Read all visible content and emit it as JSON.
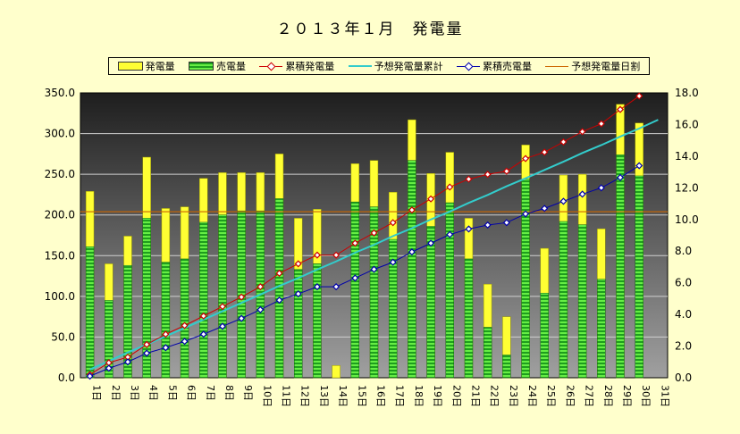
{
  "chart_data": {
    "type": "bar",
    "title": "２０１３年１月　発電量",
    "categories": [
      "1日",
      "2日",
      "3日",
      "4日",
      "5日",
      "6日",
      "7日",
      "8日",
      "9日",
      "10日",
      "11日",
      "12日",
      "13日",
      "14日",
      "15日",
      "16日",
      "17日",
      "18日",
      "19日",
      "20日",
      "21日",
      "22日",
      "23日",
      "24日",
      "25日",
      "26日",
      "27日",
      "28日",
      "29日",
      "30日",
      "31日"
    ],
    "series": [
      {
        "name": "発電量",
        "axis": "left",
        "kind": "bar",
        "color": "#ffff33",
        "values": [
          229,
          140,
          174,
          271,
          208,
          210,
          245,
          252,
          252,
          252,
          275,
          196,
          207,
          15,
          263,
          267,
          228,
          317,
          251,
          277,
          196,
          115,
          75,
          286,
          159,
          249,
          250,
          183,
          336,
          313,
          null
        ]
      },
      {
        "name": "売電量",
        "axis": "left",
        "kind": "bar",
        "color": "#33cc33",
        "values": [
          161,
          95,
          138,
          196,
          142,
          146,
          191,
          200,
          205,
          205,
          220,
          133,
          140,
          0,
          216,
          210,
          170,
          267,
          186,
          215,
          146,
          62,
          28,
          244,
          104,
          192,
          188,
          121,
          274,
          248,
          null
        ]
      },
      {
        "name": "累積発電量",
        "axis": "right",
        "kind": "line",
        "color": "#cc0000",
        "values": [
          0.2,
          0.95,
          1.3,
          2.1,
          2.75,
          3.3,
          3.9,
          4.5,
          5.1,
          5.75,
          6.6,
          7.2,
          7.75,
          7.75,
          8.5,
          9.15,
          9.8,
          10.6,
          11.3,
          12.05,
          12.55,
          12.85,
          13.05,
          13.85,
          14.25,
          14.9,
          15.55,
          16.05,
          16.95,
          17.8,
          null
        ]
      },
      {
        "name": "予想発電量累計",
        "axis": "right",
        "kind": "line",
        "color": "#33cccc",
        "values": [
          0.52,
          1.05,
          1.6,
          2.1,
          2.62,
          3.15,
          3.68,
          4.2,
          4.73,
          5.26,
          5.8,
          6.3,
          6.84,
          7.35,
          7.9,
          8.4,
          8.95,
          9.45,
          10.0,
          10.5,
          11.05,
          11.55,
          12.1,
          12.6,
          13.13,
          13.65,
          14.2,
          14.7,
          15.24,
          15.75,
          16.3
        ]
      },
      {
        "name": "累積売電量",
        "axis": "right",
        "kind": "line",
        "color": "#0000aa",
        "values": [
          0.1,
          0.6,
          1.0,
          1.55,
          1.9,
          2.3,
          2.75,
          3.25,
          3.75,
          4.3,
          4.9,
          5.3,
          5.75,
          5.75,
          6.3,
          6.85,
          7.3,
          7.95,
          8.5,
          9.05,
          9.4,
          9.65,
          9.8,
          10.35,
          10.7,
          11.15,
          11.6,
          12.0,
          12.65,
          13.4,
          null
        ]
      },
      {
        "name": "予想発電量日割",
        "axis": "left",
        "kind": "hline",
        "color": "#cc6600",
        "value": 204
      }
    ],
    "y_left": {
      "min": 0,
      "max": 350,
      "step": 50,
      "tick_labels": [
        "0.0",
        "50.0",
        "100.0",
        "150.0",
        "200.0",
        "250.0",
        "300.0",
        "350.0"
      ]
    },
    "y_right": {
      "min": 0,
      "max": 18,
      "step": 2,
      "tick_labels": [
        "0.0",
        "2.0",
        "4.0",
        "6.0",
        "8.0",
        "10.0",
        "12.0",
        "14.0",
        "16.0",
        "18.0"
      ]
    },
    "grid": true,
    "legend_position": "top"
  }
}
